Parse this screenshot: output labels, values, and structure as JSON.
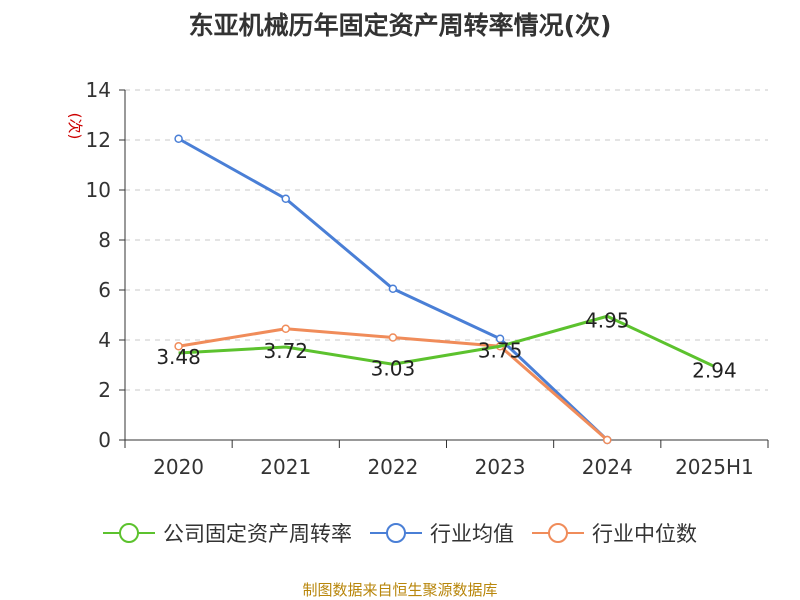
{
  "chart_data": {
    "type": "line",
    "title": "东亚机械历年固定资产周转率情况(次)",
    "ylabel": "(次)",
    "ylim": [
      0,
      14
    ],
    "yticks": [
      0,
      2,
      4,
      6,
      8,
      10,
      12,
      14
    ],
    "grid": true,
    "categories": [
      "2020",
      "2021",
      "2022",
      "2023",
      "2024",
      "2025H1"
    ],
    "series": [
      {
        "name": "公司固定资产周转率",
        "color": "#5cc22e",
        "values": [
          3.48,
          3.72,
          3.03,
          3.75,
          4.95,
          2.94
        ],
        "labels": [
          "3.48",
          "3.72",
          "3.03",
          "3.75",
          "4.95",
          "2.94"
        ]
      },
      {
        "name": "行业均值",
        "color": "#4a7fd6",
        "values": [
          12.05,
          9.65,
          6.05,
          4.05,
          0.0,
          null
        ]
      },
      {
        "name": "行业中位数",
        "color": "#f08c5a",
        "values": [
          3.75,
          4.45,
          4.1,
          3.75,
          0.0,
          null
        ]
      }
    ],
    "legend_position": "bottom"
  },
  "source": "制图数据来自恒生聚源数据库"
}
